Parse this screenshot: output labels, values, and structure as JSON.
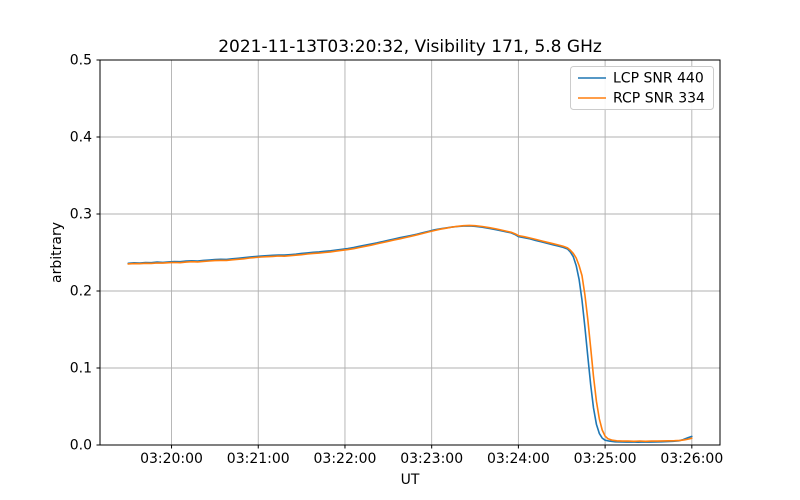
{
  "chart_data": {
    "type": "line",
    "title": "2021-11-13T03:20:32, Visibility 171, 5.8 GHz",
    "xlabel": "UT",
    "ylabel": "arbitrary",
    "grid": true,
    "legend_position": "upper right",
    "x_unit": "seconds after 03:19:00 UT",
    "xlim_seconds": [
      10.5,
      439.5
    ],
    "ylim": [
      0.0,
      0.5
    ],
    "x_ticks": [
      {
        "t": 60,
        "label": "03:20:00"
      },
      {
        "t": 120,
        "label": "03:21:00"
      },
      {
        "t": 180,
        "label": "03:22:00"
      },
      {
        "t": 240,
        "label": "03:23:00"
      },
      {
        "t": 300,
        "label": "03:24:00"
      },
      {
        "t": 360,
        "label": "03:25:00"
      },
      {
        "t": 420,
        "label": "03:26:00"
      }
    ],
    "y_ticks": [
      {
        "v": 0.0,
        "label": "0.0"
      },
      {
        "v": 0.1,
        "label": "0.1"
      },
      {
        "v": 0.2,
        "label": "0.2"
      },
      {
        "v": 0.3,
        "label": "0.3"
      },
      {
        "v": 0.4,
        "label": "0.4"
      },
      {
        "v": 0.5,
        "label": "0.5"
      }
    ],
    "colors": {
      "lcp": "#1f77b4",
      "rcp": "#ff7f0e",
      "grid": "#b0b0b0",
      "spine": "#000000",
      "legend_border": "#cccccc",
      "legend_fill": "#ffffff"
    },
    "series": [
      {
        "name": "LCP SNR 440",
        "color_key": "lcp",
        "points": [
          [
            30,
            0.236
          ],
          [
            34,
            0.2366
          ],
          [
            38,
            0.2362
          ],
          [
            42,
            0.237
          ],
          [
            46,
            0.2368
          ],
          [
            50,
            0.2375
          ],
          [
            54,
            0.2372
          ],
          [
            58,
            0.2378
          ],
          [
            62,
            0.2382
          ],
          [
            66,
            0.238
          ],
          [
            70,
            0.2388
          ],
          [
            74,
            0.2392
          ],
          [
            78,
            0.239
          ],
          [
            82,
            0.2398
          ],
          [
            86,
            0.2402
          ],
          [
            90,
            0.2408
          ],
          [
            94,
            0.2412
          ],
          [
            98,
            0.241
          ],
          [
            102,
            0.2418
          ],
          [
            106,
            0.2425
          ],
          [
            110,
            0.2432
          ],
          [
            114,
            0.244
          ],
          [
            118,
            0.2448
          ],
          [
            122,
            0.2455
          ],
          [
            126,
            0.2458
          ],
          [
            130,
            0.2464
          ],
          [
            134,
            0.2468
          ],
          [
            138,
            0.2466
          ],
          [
            142,
            0.2472
          ],
          [
            146,
            0.2478
          ],
          [
            150,
            0.2488
          ],
          [
            154,
            0.2495
          ],
          [
            158,
            0.2502
          ],
          [
            162,
            0.2508
          ],
          [
            166,
            0.2515
          ],
          [
            170,
            0.2522
          ],
          [
            174,
            0.2532
          ],
          [
            178,
            0.2542
          ],
          [
            182,
            0.2552
          ],
          [
            186,
            0.2565
          ],
          [
            190,
            0.258
          ],
          [
            194,
            0.2595
          ],
          [
            198,
            0.261
          ],
          [
            202,
            0.2625
          ],
          [
            206,
            0.2642
          ],
          [
            210,
            0.2658
          ],
          [
            214,
            0.2675
          ],
          [
            218,
            0.2692
          ],
          [
            222,
            0.2708
          ],
          [
            226,
            0.2722
          ],
          [
            230,
            0.2738
          ],
          [
            234,
            0.2758
          ],
          [
            238,
            0.2775
          ],
          [
            242,
            0.2795
          ],
          [
            246,
            0.2808
          ],
          [
            250,
            0.282
          ],
          [
            254,
            0.283
          ],
          [
            258,
            0.2838
          ],
          [
            262,
            0.2843
          ],
          [
            266,
            0.2845
          ],
          [
            270,
            0.284
          ],
          [
            275,
            0.2828
          ],
          [
            280,
            0.2812
          ],
          [
            285,
            0.2795
          ],
          [
            290,
            0.2775
          ],
          [
            295,
            0.2755
          ],
          [
            298,
            0.273
          ],
          [
            300,
            0.2706
          ],
          [
            304,
            0.2692
          ],
          [
            308,
            0.2676
          ],
          [
            312,
            0.2656
          ],
          [
            316,
            0.2638
          ],
          [
            320,
            0.2618
          ],
          [
            324,
            0.26
          ],
          [
            328,
            0.2582
          ],
          [
            331,
            0.2566
          ],
          [
            334,
            0.2545
          ],
          [
            336,
            0.2505
          ],
          [
            338,
            0.2445
          ],
          [
            340,
            0.233
          ],
          [
            342,
            0.215
          ],
          [
            344,
            0.188
          ],
          [
            346,
            0.153
          ],
          [
            348,
            0.115
          ],
          [
            350,
            0.078
          ],
          [
            352,
            0.048
          ],
          [
            354,
            0.027
          ],
          [
            356,
            0.015
          ],
          [
            358,
            0.009
          ],
          [
            360,
            0.0062
          ],
          [
            363,
            0.005
          ],
          [
            367,
            0.0042
          ],
          [
            371,
            0.004
          ],
          [
            375,
            0.0038
          ],
          [
            379,
            0.004
          ],
          [
            383,
            0.0037
          ],
          [
            387,
            0.004
          ],
          [
            391,
            0.0038
          ],
          [
            395,
            0.004
          ],
          [
            399,
            0.0042
          ],
          [
            403,
            0.0044
          ],
          [
            407,
            0.0048
          ],
          [
            411,
            0.0055
          ],
          [
            414,
            0.007
          ],
          [
            417,
            0.0092
          ],
          [
            420,
            0.0112
          ]
        ]
      },
      {
        "name": "RCP SNR 334",
        "color_key": "rcp",
        "points": [
          [
            30,
            0.2352
          ],
          [
            34,
            0.2356
          ],
          [
            38,
            0.2354
          ],
          [
            42,
            0.236
          ],
          [
            46,
            0.2358
          ],
          [
            50,
            0.2364
          ],
          [
            54,
            0.2362
          ],
          [
            58,
            0.2368
          ],
          [
            62,
            0.237
          ],
          [
            66,
            0.2368
          ],
          [
            70,
            0.2375
          ],
          [
            74,
            0.238
          ],
          [
            78,
            0.2378
          ],
          [
            82,
            0.2385
          ],
          [
            86,
            0.239
          ],
          [
            90,
            0.2395
          ],
          [
            94,
            0.2398
          ],
          [
            98,
            0.2398
          ],
          [
            102,
            0.2405
          ],
          [
            106,
            0.2412
          ],
          [
            110,
            0.2418
          ],
          [
            114,
            0.2428
          ],
          [
            118,
            0.2435
          ],
          [
            122,
            0.2442
          ],
          [
            126,
            0.2445
          ],
          [
            130,
            0.245
          ],
          [
            134,
            0.2455
          ],
          [
            138,
            0.2452
          ],
          [
            142,
            0.2458
          ],
          [
            146,
            0.2465
          ],
          [
            150,
            0.2472
          ],
          [
            154,
            0.248
          ],
          [
            158,
            0.2488
          ],
          [
            162,
            0.2492
          ],
          [
            166,
            0.25
          ],
          [
            170,
            0.2508
          ],
          [
            174,
            0.2518
          ],
          [
            178,
            0.2528
          ],
          [
            182,
            0.2538
          ],
          [
            186,
            0.255
          ],
          [
            190,
            0.2565
          ],
          [
            194,
            0.258
          ],
          [
            198,
            0.2595
          ],
          [
            202,
            0.2612
          ],
          [
            206,
            0.2628
          ],
          [
            210,
            0.2645
          ],
          [
            214,
            0.2662
          ],
          [
            218,
            0.2678
          ],
          [
            222,
            0.2695
          ],
          [
            226,
            0.2712
          ],
          [
            230,
            0.273
          ],
          [
            234,
            0.2748
          ],
          [
            238,
            0.2768
          ],
          [
            242,
            0.2786
          ],
          [
            246,
            0.2802
          ],
          [
            250,
            0.2816
          ],
          [
            254,
            0.283
          ],
          [
            258,
            0.284
          ],
          [
            262,
            0.2848
          ],
          [
            266,
            0.2852
          ],
          [
            270,
            0.2848
          ],
          [
            275,
            0.2838
          ],
          [
            280,
            0.2822
          ],
          [
            285,
            0.2805
          ],
          [
            290,
            0.2785
          ],
          [
            295,
            0.2762
          ],
          [
            298,
            0.274
          ],
          [
            300,
            0.272
          ],
          [
            304,
            0.2705
          ],
          [
            308,
            0.2688
          ],
          [
            312,
            0.267
          ],
          [
            316,
            0.265
          ],
          [
            320,
            0.2632
          ],
          [
            324,
            0.2614
          ],
          [
            328,
            0.2596
          ],
          [
            331,
            0.258
          ],
          [
            334,
            0.256
          ],
          [
            336,
            0.2528
          ],
          [
            338,
            0.2488
          ],
          [
            340,
            0.2428
          ],
          [
            342,
            0.233
          ],
          [
            344,
            0.22
          ],
          [
            346,
            0.195
          ],
          [
            348,
            0.163
          ],
          [
            350,
            0.126
          ],
          [
            352,
            0.089
          ],
          [
            354,
            0.057
          ],
          [
            356,
            0.034
          ],
          [
            358,
            0.0195
          ],
          [
            360,
            0.0115
          ],
          [
            362,
            0.008
          ],
          [
            365,
            0.0062
          ],
          [
            368,
            0.0054
          ],
          [
            372,
            0.005
          ],
          [
            376,
            0.0052
          ],
          [
            380,
            0.0048
          ],
          [
            384,
            0.0052
          ],
          [
            388,
            0.0048
          ],
          [
            392,
            0.0052
          ],
          [
            396,
            0.005
          ],
          [
            400,
            0.0053
          ],
          [
            404,
            0.0055
          ],
          [
            408,
            0.0056
          ],
          [
            412,
            0.006
          ],
          [
            415,
            0.0068
          ],
          [
            418,
            0.0078
          ],
          [
            420,
            0.0088
          ]
        ]
      }
    ]
  }
}
